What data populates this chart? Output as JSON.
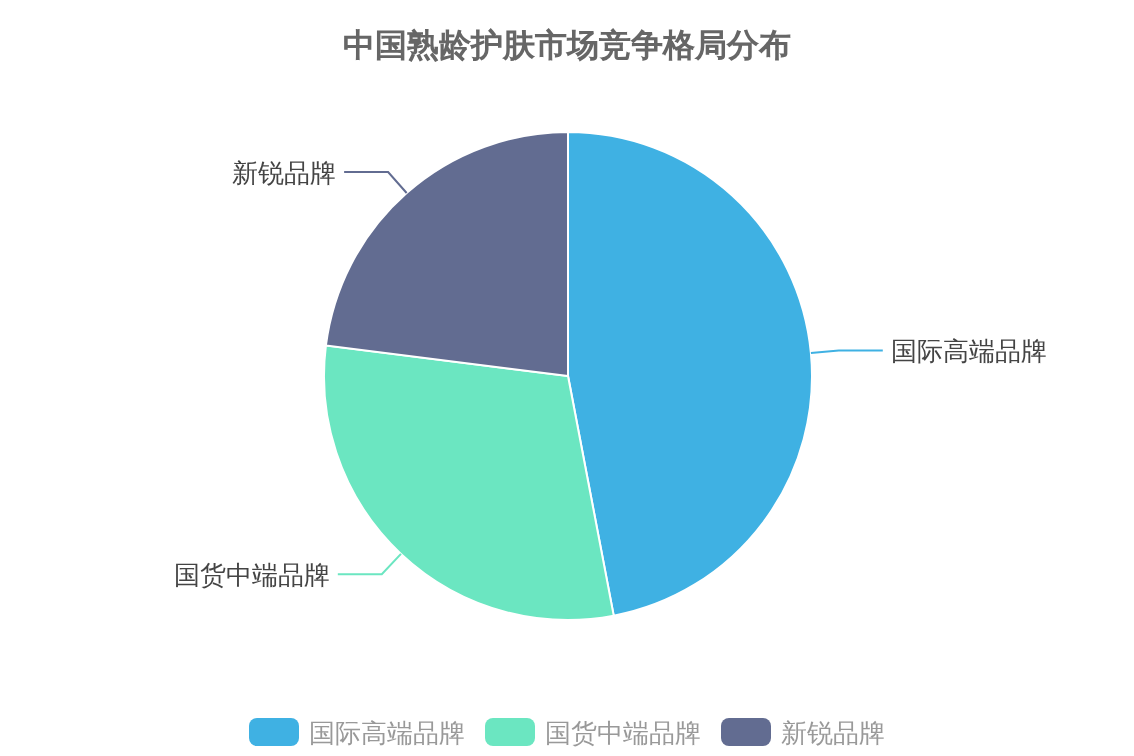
{
  "chart_data": {
    "type": "pie",
    "title": "中国熟龄护肤市场竞争格局分布",
    "categories": [
      "国际高端品牌",
      "国货中端品牌",
      "新锐品牌"
    ],
    "values": [
      47,
      30,
      23
    ],
    "colors": [
      "#3fb1e3",
      "#6be6c1",
      "#626c91"
    ],
    "legend": "bottom"
  }
}
